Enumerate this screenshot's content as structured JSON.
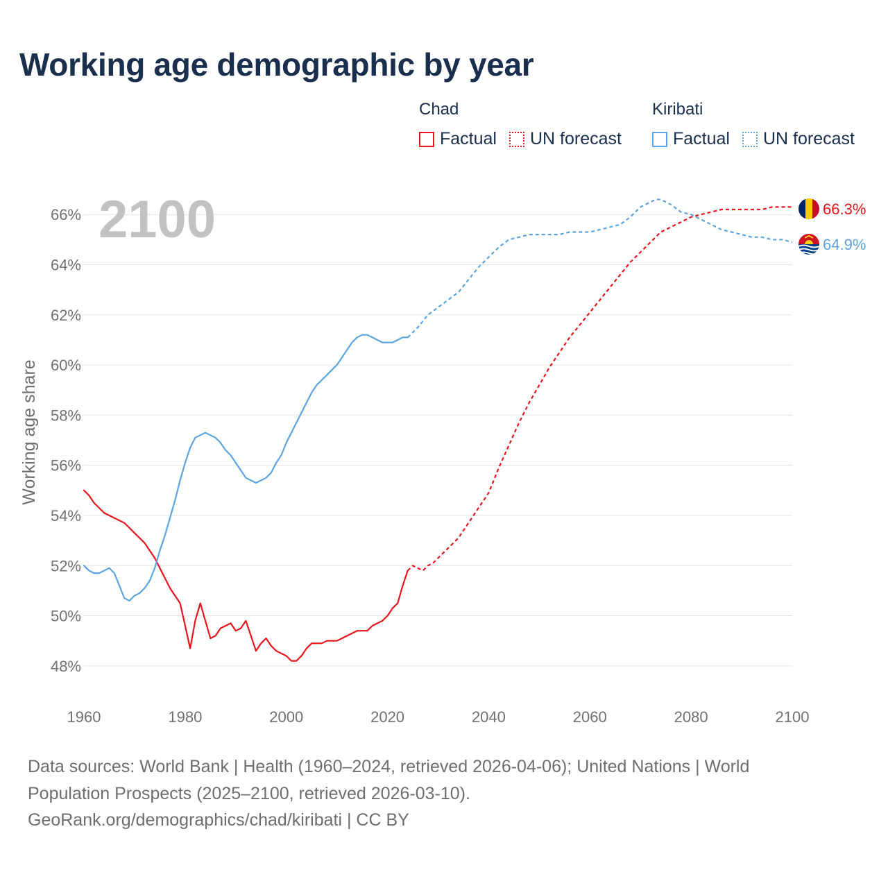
{
  "title": "Working age demographic by year",
  "colors": {
    "chad": "#e8141b",
    "kiribati": "#5ba4e2",
    "grid": "#e4e4e4",
    "axis_text": "#707070",
    "year_watermark": "#c2c2c2"
  },
  "legend": {
    "chad": {
      "name": "Chad",
      "factual": "Factual",
      "forecast": "UN forecast"
    },
    "kiribati": {
      "name": "Kiribati",
      "factual": "Factual",
      "forecast": "UN forecast"
    }
  },
  "footer": {
    "line1": "Data sources: World Bank | Health (1960–2024, retrieved 2026-04-06); United Nations | World",
    "line2": "Population Prospects (2025–2100, retrieved 2026-03-10).",
    "line3": "GeoRank.org/demographics/chad/kiribati | CC BY"
  },
  "chart_data": {
    "type": "line",
    "title": "Working age demographic by year",
    "xlabel": "",
    "ylabel": "Working age share",
    "year_label": "2100",
    "xlim": [
      1960,
      2100
    ],
    "ylim": [
      47,
      67.5
    ],
    "x_ticks": [
      1960,
      1980,
      2000,
      2020,
      2040,
      2060,
      2080,
      2100
    ],
    "x_tick_labels": [
      "1960",
      "1980",
      "2000",
      "2020",
      "2040",
      "2060",
      "2080",
      "2100"
    ],
    "y_ticks": [
      48,
      50,
      52,
      54,
      56,
      58,
      60,
      62,
      64,
      66
    ],
    "y_tick_labels": [
      "48%",
      "50%",
      "52%",
      "54%",
      "56%",
      "58%",
      "60%",
      "62%",
      "64%",
      "66%"
    ],
    "grid": true,
    "legend_position": "top-right",
    "series": [
      {
        "name": "Chad",
        "kind": "Factual",
        "color": "#e8141b",
        "dashed": false,
        "x": [
          1960,
          1961,
          1962,
          1963,
          1964,
          1965,
          1966,
          1967,
          1968,
          1969,
          1970,
          1971,
          1972,
          1973,
          1974,
          1975,
          1976,
          1977,
          1978,
          1979,
          1980,
          1981,
          1982,
          1983,
          1984,
          1985,
          1986,
          1987,
          1988,
          1989,
          1990,
          1991,
          1992,
          1993,
          1994,
          1995,
          1996,
          1997,
          1998,
          1999,
          2000,
          2001,
          2002,
          2003,
          2004,
          2005,
          2006,
          2007,
          2008,
          2009,
          2010,
          2011,
          2012,
          2013,
          2014,
          2015,
          2016,
          2017,
          2018,
          2019,
          2020,
          2021,
          2022,
          2023,
          2024
        ],
        "y": [
          55.0,
          54.8,
          54.5,
          54.3,
          54.1,
          54.0,
          53.9,
          53.8,
          53.7,
          53.5,
          53.3,
          53.1,
          52.9,
          52.6,
          52.3,
          51.9,
          51.5,
          51.1,
          50.8,
          50.5,
          49.6,
          48.7,
          49.8,
          50.5,
          49.8,
          49.1,
          49.2,
          49.5,
          49.6,
          49.7,
          49.4,
          49.5,
          49.8,
          49.2,
          48.6,
          48.9,
          49.1,
          48.8,
          48.6,
          48.5,
          48.4,
          48.2,
          48.2,
          48.4,
          48.7,
          48.9,
          48.9,
          48.9,
          49.0,
          49.0,
          49.0,
          49.1,
          49.2,
          49.3,
          49.4,
          49.4,
          49.4,
          49.6,
          49.7,
          49.8,
          50.0,
          50.3,
          50.5,
          51.2,
          51.8
        ]
      },
      {
        "name": "Chad",
        "kind": "UN forecast",
        "color": "#e8141b",
        "dashed": true,
        "x": [
          2024,
          2025,
          2026,
          2027,
          2028,
          2029,
          2030,
          2032,
          2034,
          2036,
          2038,
          2040,
          2042,
          2044,
          2046,
          2048,
          2050,
          2052,
          2054,
          2056,
          2058,
          2060,
          2062,
          2064,
          2066,
          2068,
          2070,
          2072,
          2074,
          2076,
          2078,
          2080,
          2082,
          2084,
          2086,
          2088,
          2090,
          2092,
          2094,
          2096,
          2098,
          2100
        ],
        "y": [
          51.8,
          52.0,
          51.9,
          51.8,
          52.0,
          52.1,
          52.3,
          52.7,
          53.1,
          53.7,
          54.3,
          54.9,
          55.9,
          56.8,
          57.7,
          58.5,
          59.2,
          59.9,
          60.5,
          61.1,
          61.6,
          62.1,
          62.6,
          63.1,
          63.6,
          64.1,
          64.5,
          64.9,
          65.3,
          65.5,
          65.7,
          65.9,
          66.0,
          66.1,
          66.2,
          66.2,
          66.2,
          66.2,
          66.2,
          66.3,
          66.3,
          66.3
        ]
      },
      {
        "name": "Kiribati",
        "kind": "Factual",
        "color": "#5ba4e2",
        "dashed": false,
        "x": [
          1960,
          1961,
          1962,
          1963,
          1964,
          1965,
          1966,
          1967,
          1968,
          1969,
          1970,
          1971,
          1972,
          1973,
          1974,
          1975,
          1976,
          1977,
          1978,
          1979,
          1980,
          1981,
          1982,
          1983,
          1984,
          1985,
          1986,
          1987,
          1988,
          1989,
          1990,
          1991,
          1992,
          1993,
          1994,
          1995,
          1996,
          1997,
          1998,
          1999,
          2000,
          2001,
          2002,
          2003,
          2004,
          2005,
          2006,
          2007,
          2008,
          2009,
          2010,
          2011,
          2012,
          2013,
          2014,
          2015,
          2016,
          2017,
          2018,
          2019,
          2020,
          2021,
          2022,
          2023,
          2024
        ],
        "y": [
          52.0,
          51.8,
          51.7,
          51.7,
          51.8,
          51.9,
          51.7,
          51.2,
          50.7,
          50.6,
          50.8,
          50.9,
          51.1,
          51.4,
          51.9,
          52.6,
          53.2,
          53.9,
          54.6,
          55.4,
          56.1,
          56.7,
          57.1,
          57.2,
          57.3,
          57.2,
          57.1,
          56.9,
          56.6,
          56.4,
          56.1,
          55.8,
          55.5,
          55.4,
          55.3,
          55.4,
          55.5,
          55.7,
          56.1,
          56.4,
          56.9,
          57.3,
          57.7,
          58.1,
          58.5,
          58.9,
          59.2,
          59.4,
          59.6,
          59.8,
          60.0,
          60.3,
          60.6,
          60.9,
          61.1,
          61.2,
          61.2,
          61.1,
          61.0,
          60.9,
          60.9,
          60.9,
          61.0,
          61.1,
          61.1
        ]
      },
      {
        "name": "Kiribati",
        "kind": "UN forecast",
        "color": "#5ba4e2",
        "dashed": true,
        "x": [
          2024,
          2026,
          2028,
          2030,
          2032,
          2034,
          2036,
          2038,
          2040,
          2042,
          2044,
          2046,
          2048,
          2050,
          2052,
          2054,
          2056,
          2058,
          2060,
          2062,
          2064,
          2066,
          2068,
          2070,
          2072,
          2073,
          2074,
          2076,
          2078,
          2080,
          2082,
          2084,
          2086,
          2088,
          2090,
          2092,
          2094,
          2096,
          2098,
          2100
        ],
        "y": [
          61.1,
          61.5,
          62.0,
          62.3,
          62.6,
          62.9,
          63.4,
          63.9,
          64.3,
          64.7,
          65.0,
          65.1,
          65.2,
          65.2,
          65.2,
          65.2,
          65.3,
          65.3,
          65.3,
          65.4,
          65.5,
          65.6,
          65.9,
          66.3,
          66.5,
          66.6,
          66.6,
          66.4,
          66.1,
          66.0,
          65.8,
          65.6,
          65.4,
          65.3,
          65.2,
          65.1,
          65.1,
          65.0,
          65.0,
          64.9
        ]
      }
    ],
    "end_labels": [
      {
        "country": "Chad",
        "value": 66.3,
        "text": "66.3%",
        "color": "#e8141b"
      },
      {
        "country": "Kiribati",
        "value": 64.9,
        "text": "64.9%",
        "color": "#5ba4e2"
      }
    ]
  }
}
